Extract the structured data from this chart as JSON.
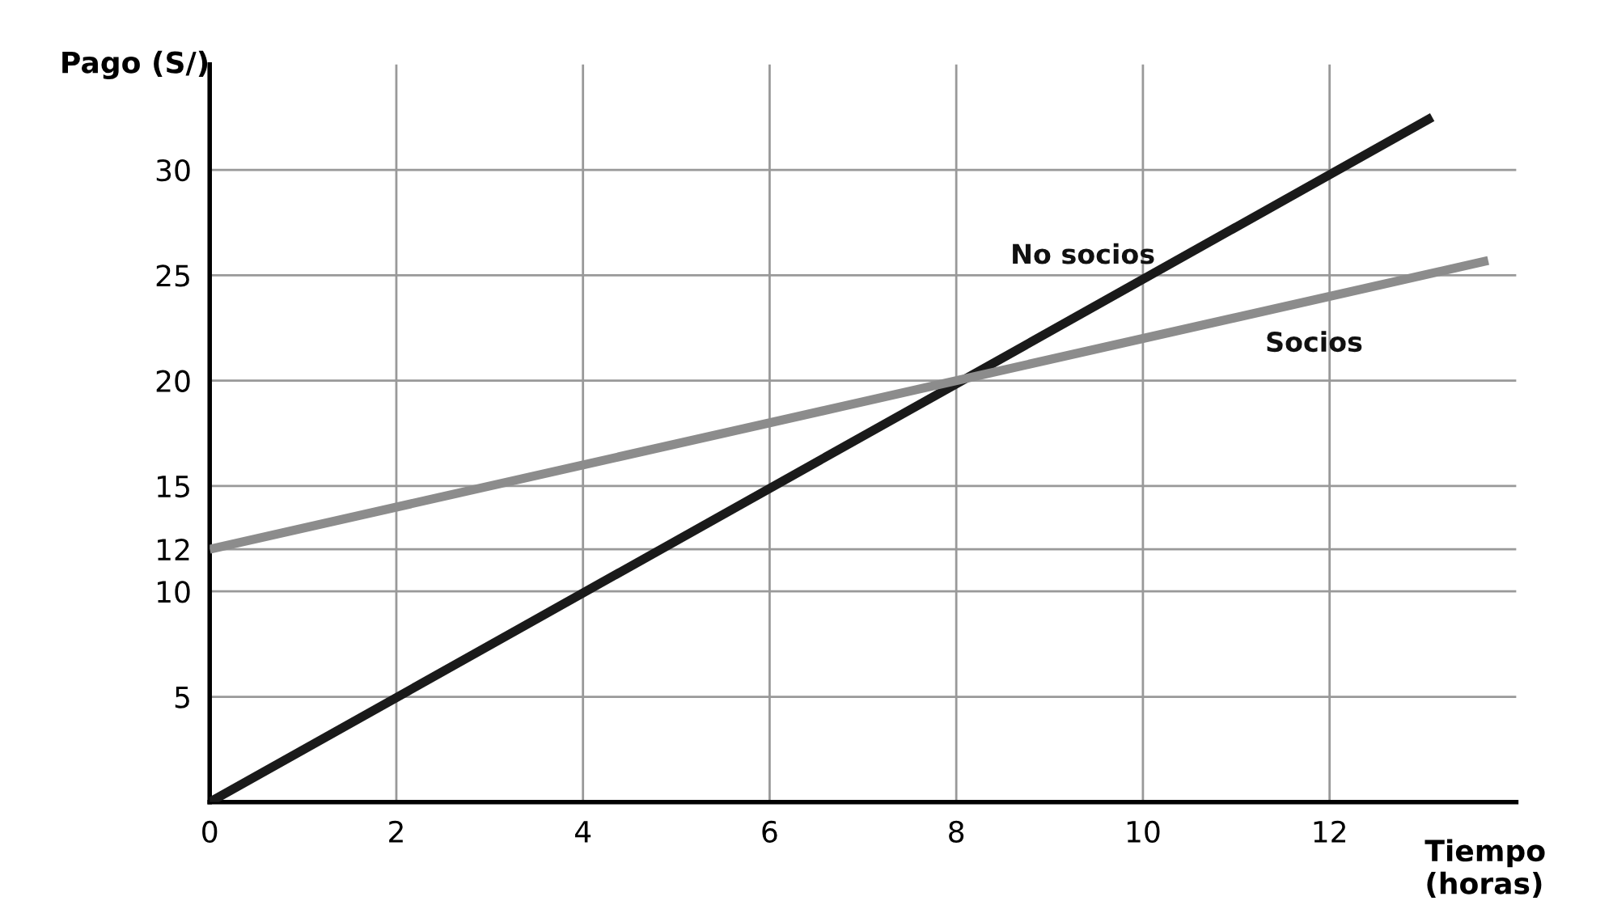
{
  "chart_data": {
    "type": "line",
    "xlabel": "Tiempo\n(horas)",
    "ylabel": "Pago (S/)",
    "xlim": [
      0,
      14
    ],
    "ylim": [
      0,
      35
    ],
    "xticks": [
      0,
      2,
      4,
      6,
      8,
      10,
      12
    ],
    "yticks": [
      5,
      10,
      12,
      15,
      20,
      25,
      30
    ],
    "grid": true,
    "marker": "none",
    "line_style": "solid",
    "series": [
      {
        "name": "No socios",
        "color": "#1a1a1a",
        "x": [
          0,
          13.1
        ],
        "values": [
          0,
          32.5
        ]
      },
      {
        "name": "Socios",
        "color": "#8c8c8c",
        "x": [
          0,
          13.7
        ],
        "values": [
          12,
          25.7
        ]
      }
    ]
  }
}
